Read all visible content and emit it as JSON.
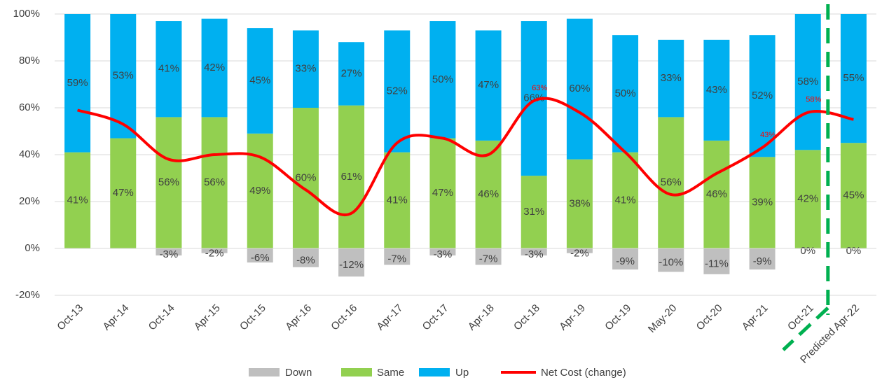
{
  "chart_data": {
    "type": "bar",
    "categories": [
      "Oct-13",
      "Apr-14",
      "Oct-14",
      "Apr-15",
      "Oct-15",
      "Apr-16",
      "Oct-16",
      "Apr-17",
      "Oct-17",
      "Apr-18",
      "Oct-18",
      "Apr-19",
      "Oct-19",
      "May-20",
      "Oct-20",
      "Apr-21",
      "Oct-21",
      "Predicted Apr-22"
    ],
    "ylim": [
      -20,
      100
    ],
    "yticks": [
      {
        "value": -20,
        "label": "-20%"
      },
      {
        "value": 0,
        "label": "0%"
      },
      {
        "value": 20,
        "label": "20%"
      },
      {
        "value": 40,
        "label": "40%"
      },
      {
        "value": 60,
        "label": "60%"
      },
      {
        "value": 80,
        "label": "80%"
      },
      {
        "value": 100,
        "label": "100%"
      }
    ],
    "grid": true,
    "series": [
      {
        "name": "Down",
        "color": "#bfbfbf",
        "values": [
          null,
          null,
          -3,
          -2,
          -6,
          -8,
          -12,
          -7,
          -3,
          -7,
          -3,
          -2,
          -9,
          -10,
          -11,
          -9,
          0,
          0
        ],
        "value_labels": [
          null,
          null,
          "-3%",
          "-2%",
          "-6%",
          "-8%",
          "-12%",
          "-7%",
          "-3%",
          "-7%",
          "-3%",
          "-2%",
          "-9%",
          "-10%",
          "-11%",
          "-9%",
          "0%",
          "0%"
        ]
      },
      {
        "name": "Same",
        "color": "#92d050",
        "values": [
          41,
          47,
          56,
          56,
          49,
          60,
          61,
          41,
          47,
          46,
          31,
          38,
          41,
          56,
          46,
          39,
          42,
          45
        ],
        "value_labels": [
          "41%",
          "47%",
          "56%",
          "56%",
          "49%",
          "60%",
          "61%",
          "41%",
          "47%",
          "46%",
          "31%",
          "38%",
          "41%",
          "56%",
          "46%",
          "39%",
          "42%",
          "45%"
        ]
      },
      {
        "name": "Up",
        "color": "#00b0f0",
        "values": [
          59,
          53,
          41,
          42,
          45,
          33,
          27,
          52,
          50,
          47,
          66,
          60,
          50,
          33,
          43,
          52,
          58,
          55
        ],
        "value_labels": [
          "59%",
          "53%",
          "41%",
          "42%",
          "45%",
          "33%",
          "27%",
          "52%",
          "50%",
          "47%",
          "66%",
          "60%",
          "50%",
          "33%",
          "43%",
          "52%",
          "58%",
          "55%"
        ]
      },
      {
        "name": "Net Cost (change)",
        "type": "line",
        "color": "#ff0000",
        "values": [
          59,
          53,
          38,
          40,
          39,
          25,
          15,
          45,
          47,
          40,
          63,
          58,
          41,
          23,
          32,
          43,
          58,
          55
        ],
        "value_labels": [
          null,
          null,
          null,
          null,
          null,
          null,
          null,
          null,
          null,
          null,
          "63%",
          null,
          null,
          null,
          null,
          "43%",
          "58%",
          null
        ]
      }
    ]
  }
}
